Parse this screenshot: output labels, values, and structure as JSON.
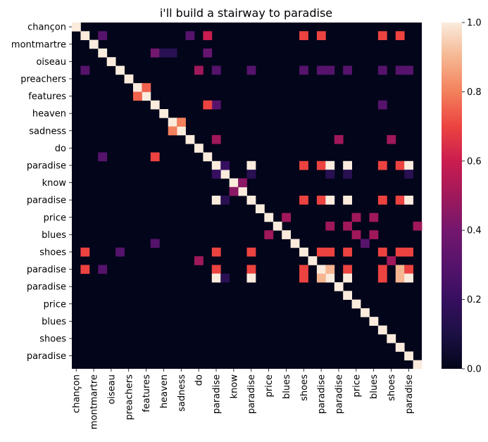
{
  "chart_data": {
    "type": "heatmap",
    "title": "i'll build a stairway to paradise",
    "xlabel": "",
    "ylabel": "",
    "tokens": [
      "chançon",
      "",
      "montmartre",
      "",
      "oiseau",
      "",
      "preachers",
      "",
      "features",
      "",
      "heaven",
      "",
      "sadness",
      "",
      "do",
      "",
      "paradise",
      "",
      "know",
      "",
      "paradise",
      "",
      "price",
      "",
      "blues",
      "",
      "shoes",
      "",
      "paradise",
      "",
      "paradise",
      "",
      "price",
      "",
      "blues",
      "",
      "shoes",
      "",
      "paradise",
      ""
    ],
    "x_tick_labels": [
      "chançon",
      "montmartre",
      "oiseau",
      "preachers",
      "features",
      "heaven",
      "sadness",
      "do",
      "paradise",
      "know",
      "paradise",
      "price",
      "blues",
      "shoes",
      "paradise",
      "paradise",
      "price",
      "blues",
      "shoes",
      "paradise"
    ],
    "y_tick_labels": [
      "chançon",
      "montmartre",
      "oiseau",
      "preachers",
      "features",
      "heaven",
      "sadness",
      "do",
      "paradise",
      "know",
      "paradise",
      "price",
      "blues",
      "shoes",
      "paradise",
      "paradise",
      "price",
      "blues",
      "shoes",
      "paradise"
    ],
    "colorbar": {
      "min": 0.0,
      "max": 1.0,
      "ticks": [
        "0.0",
        "0.2",
        "0.4",
        "0.6",
        "0.8",
        "1.0"
      ],
      "colormap": "rocket"
    },
    "note_on_values": "approximate intensities 0-1, estimated from color; matrix is symmetric",
    "cells": [
      [
        0,
        0,
        1.0
      ],
      [
        1,
        1,
        1.0
      ],
      [
        2,
        2,
        1.0
      ],
      [
        3,
        3,
        1.0
      ],
      [
        4,
        4,
        1.0
      ],
      [
        5,
        5,
        1.0
      ],
      [
        6,
        6,
        1.0
      ],
      [
        7,
        7,
        1.0
      ],
      [
        8,
        8,
        1.0
      ],
      [
        9,
        9,
        1.0
      ],
      [
        10,
        10,
        1.0
      ],
      [
        11,
        11,
        1.0
      ],
      [
        12,
        12,
        1.0
      ],
      [
        13,
        13,
        1.0
      ],
      [
        14,
        14,
        1.0
      ],
      [
        15,
        15,
        1.0
      ],
      [
        16,
        16,
        1.0
      ],
      [
        17,
        17,
        1.0
      ],
      [
        18,
        18,
        1.0
      ],
      [
        19,
        19,
        1.0
      ],
      [
        20,
        20,
        1.0
      ],
      [
        21,
        21,
        1.0
      ],
      [
        22,
        22,
        1.0
      ],
      [
        23,
        23,
        1.0
      ],
      [
        24,
        24,
        1.0
      ],
      [
        25,
        25,
        1.0
      ],
      [
        26,
        26,
        1.0
      ],
      [
        27,
        27,
        1.0
      ],
      [
        28,
        28,
        1.0
      ],
      [
        29,
        29,
        1.0
      ],
      [
        30,
        30,
        1.0
      ],
      [
        31,
        31,
        1.0
      ],
      [
        32,
        32,
        1.0
      ],
      [
        33,
        33,
        1.0
      ],
      [
        34,
        34,
        1.0
      ],
      [
        35,
        35,
        1.0
      ],
      [
        36,
        36,
        1.0
      ],
      [
        37,
        37,
        1.0
      ],
      [
        38,
        38,
        1.0
      ],
      [
        39,
        39,
        1.0
      ],
      [
        1,
        3,
        0.3
      ],
      [
        1,
        13,
        0.3
      ],
      [
        1,
        15,
        0.6
      ],
      [
        1,
        26,
        0.7
      ],
      [
        1,
        28,
        0.7
      ],
      [
        1,
        35,
        0.7
      ],
      [
        1,
        37,
        0.7
      ],
      [
        3,
        9,
        0.4
      ],
      [
        3,
        10,
        0.15
      ],
      [
        3,
        11,
        0.15
      ],
      [
        3,
        15,
        0.35
      ],
      [
        5,
        1,
        0.3
      ],
      [
        5,
        14,
        0.5
      ],
      [
        5,
        16,
        0.3
      ],
      [
        5,
        20,
        0.3
      ],
      [
        5,
        26,
        0.3
      ],
      [
        5,
        28,
        0.3
      ],
      [
        5,
        29,
        0.3
      ],
      [
        5,
        31,
        0.3
      ],
      [
        5,
        35,
        0.3
      ],
      [
        5,
        37,
        0.3
      ],
      [
        5,
        38,
        0.3
      ],
      [
        7,
        8,
        0.75
      ],
      [
        8,
        7,
        0.75
      ],
      [
        9,
        16,
        0.3
      ],
      [
        9,
        35,
        0.3
      ],
      [
        9,
        15,
        0.7
      ],
      [
        11,
        12,
        0.8
      ],
      [
        12,
        11,
        0.8
      ],
      [
        13,
        16,
        0.5
      ],
      [
        13,
        30,
        0.5
      ],
      [
        13,
        36,
        0.5
      ],
      [
        15,
        3,
        0.3
      ],
      [
        15,
        9,
        0.7
      ],
      [
        16,
        17,
        0.2
      ],
      [
        16,
        20,
        1.0
      ],
      [
        16,
        26,
        0.7
      ],
      [
        16,
        28,
        0.7
      ],
      [
        16,
        29,
        1.0
      ],
      [
        16,
        31,
        1.0
      ],
      [
        16,
        35,
        0.7
      ],
      [
        16,
        37,
        0.7
      ],
      [
        16,
        38,
        1.0
      ],
      [
        17,
        16,
        0.2
      ],
      [
        17,
        20,
        0.15
      ],
      [
        17,
        29,
        0.15
      ],
      [
        17,
        31,
        0.15
      ],
      [
        17,
        38,
        0.15
      ],
      [
        18,
        19,
        0.45
      ],
      [
        19,
        18,
        0.45
      ],
      [
        20,
        16,
        1.0
      ],
      [
        20,
        17,
        0.15
      ],
      [
        20,
        26,
        0.7
      ],
      [
        20,
        28,
        0.7
      ],
      [
        20,
        29,
        1.0
      ],
      [
        20,
        31,
        1.0
      ],
      [
        20,
        35,
        0.7
      ],
      [
        20,
        37,
        0.7
      ],
      [
        20,
        38,
        1.0
      ],
      [
        22,
        24,
        0.5
      ],
      [
        22,
        32,
        0.5
      ],
      [
        22,
        34,
        0.5
      ],
      [
        23,
        29,
        0.5
      ],
      [
        23,
        31,
        0.5
      ],
      [
        23,
        39,
        0.5
      ],
      [
        24,
        22,
        0.5
      ],
      [
        24,
        32,
        0.5
      ],
      [
        24,
        34,
        0.5
      ],
      [
        25,
        9,
        0.3
      ],
      [
        25,
        33,
        0.3
      ],
      [
        26,
        1,
        0.7
      ],
      [
        26,
        5,
        0.3
      ],
      [
        26,
        16,
        0.7
      ],
      [
        26,
        20,
        0.7
      ],
      [
        26,
        28,
        0.7
      ],
      [
        26,
        29,
        0.7
      ],
      [
        26,
        31,
        0.7
      ],
      [
        26,
        35,
        0.7
      ],
      [
        26,
        37,
        0.7
      ],
      [
        26,
        38,
        0.7
      ],
      [
        27,
        14,
        0.5
      ],
      [
        27,
        36,
        0.5
      ],
      [
        28,
        1,
        0.7
      ],
      [
        28,
        3,
        0.3
      ],
      [
        28,
        16,
        0.7
      ],
      [
        28,
        20,
        0.7
      ],
      [
        28,
        26,
        0.7
      ],
      [
        28,
        29,
        0.9
      ],
      [
        28,
        31,
        0.7
      ],
      [
        28,
        35,
        0.7
      ],
      [
        28,
        37,
        0.9
      ],
      [
        28,
        38,
        0.7
      ],
      [
        29,
        16,
        1.0
      ],
      [
        29,
        17,
        0.15
      ],
      [
        29,
        20,
        1.0
      ],
      [
        29,
        26,
        0.7
      ],
      [
        29,
        28,
        0.9
      ],
      [
        29,
        31,
        1.0
      ],
      [
        29,
        35,
        0.7
      ],
      [
        29,
        37,
        0.9
      ],
      [
        29,
        38,
        1.0
      ]
    ]
  }
}
